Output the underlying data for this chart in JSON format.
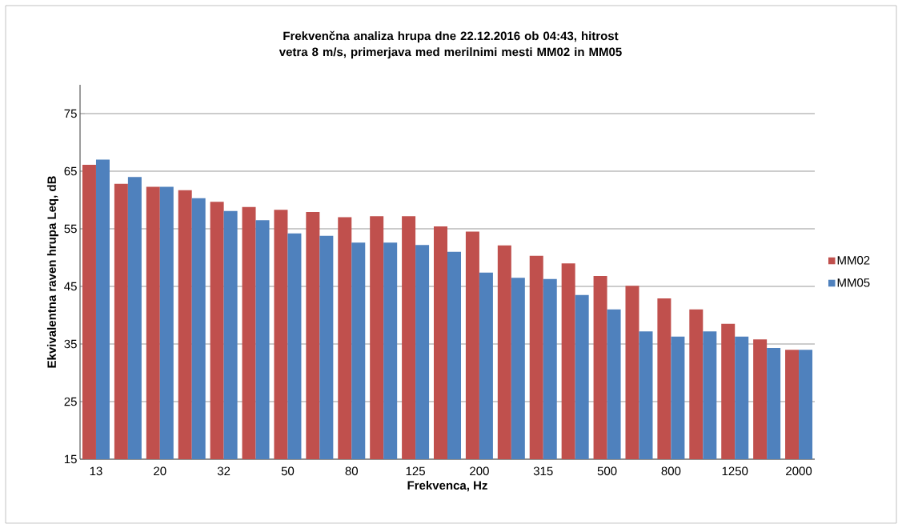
{
  "chart_data": {
    "type": "bar",
    "title": "Frekvenčna analiza hrupa dne 22.12.2016 ob 04:43, hitrost vetra 8 m/s, primerjava med merilnimi mesti MM02 in MM05",
    "xlabel": "Frekvenca, Hz",
    "ylabel": "Ekvivalentna raven hrupa Leq, dB",
    "categories": [
      "13",
      null,
      "20",
      null,
      "32",
      null,
      "50",
      null,
      "80",
      null,
      "125",
      null,
      "200",
      null,
      "315",
      null,
      "500",
      null,
      "800",
      null,
      "1250",
      null,
      "2000"
    ],
    "series": [
      {
        "name": "MM02",
        "color": "#c0504d",
        "values": [
          66.1,
          62.8,
          62.3,
          61.7,
          59.7,
          58.8,
          58.3,
          57.9,
          57.0,
          57.2,
          57.2,
          55.4,
          54.5,
          52.1,
          50.3,
          49.0,
          46.8,
          45.1,
          42.9,
          41.0,
          38.5,
          35.8,
          34.0
        ]
      },
      {
        "name": "MM05",
        "color": "#4f81bd",
        "values": [
          67.0,
          64.0,
          62.3,
          60.3,
          58.1,
          56.5,
          54.2,
          53.8,
          52.6,
          52.6,
          52.2,
          51.0,
          47.4,
          46.5,
          46.3,
          43.5,
          41.0,
          37.2,
          36.3,
          37.2,
          36.3,
          34.3,
          34.0
        ]
      }
    ],
    "ylim": [
      15,
      80
    ],
    "yticks": [
      15,
      25,
      35,
      45,
      55,
      65,
      75
    ],
    "grid": "y",
    "legend": "right"
  }
}
